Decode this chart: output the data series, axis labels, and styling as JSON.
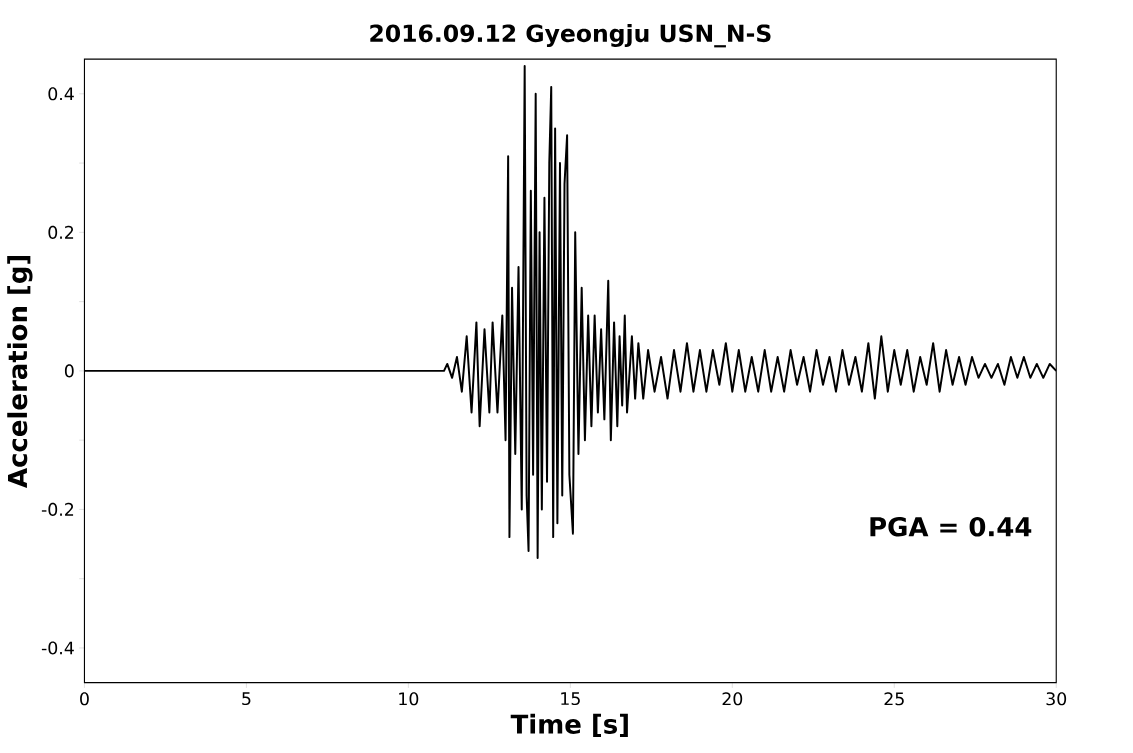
{
  "chart_data": {
    "type": "line",
    "title": "2016.09.12 Gyeongju USN_N-S",
    "xlabel": "Time [s]",
    "ylabel": "Acceleration [g]",
    "annotations": [
      "PGA = 0.44"
    ],
    "series": [
      {
        "color": "#000000",
        "x": [
          0,
          11.1,
          11.2,
          11.35,
          11.5,
          11.65,
          11.8,
          11.95,
          12.1,
          12.2,
          12.35,
          12.5,
          12.6,
          12.75,
          12.9,
          13.0,
          13.08,
          13.12,
          13.2,
          13.3,
          13.4,
          13.5,
          13.59,
          13.65,
          13.71,
          13.78,
          13.85,
          13.93,
          13.99,
          14.05,
          14.12,
          14.2,
          14.28,
          14.35,
          14.41,
          14.47,
          14.53,
          14.6,
          14.68,
          14.75,
          14.82,
          14.9,
          14.97,
          15.08,
          15.15,
          15.25,
          15.35,
          15.45,
          15.55,
          15.65,
          15.75,
          15.85,
          15.95,
          16.05,
          16.17,
          16.25,
          16.35,
          16.45,
          16.52,
          16.6,
          16.68,
          16.75,
          16.9,
          17.0,
          17.1,
          17.25,
          17.4,
          17.6,
          17.8,
          18.0,
          18.2,
          18.4,
          18.6,
          18.8,
          19.0,
          19.2,
          19.4,
          19.6,
          19.8,
          20.0,
          20.2,
          20.4,
          20.6,
          20.8,
          21.0,
          21.2,
          21.4,
          21.6,
          21.8,
          22.0,
          22.2,
          22.4,
          22.6,
          22.8,
          23.0,
          23.2,
          23.4,
          23.6,
          23.8,
          24.0,
          24.2,
          24.4,
          24.6,
          24.8,
          25.0,
          25.2,
          25.4,
          25.6,
          25.8,
          26.0,
          26.2,
          26.4,
          26.6,
          26.8,
          27.0,
          27.2,
          27.4,
          27.6,
          27.8,
          28.0,
          28.2,
          28.4,
          28.6,
          28.8,
          29.0,
          29.2,
          29.4,
          29.6,
          29.8,
          30.0
        ],
        "values": [
          0,
          0,
          0.01,
          -0.01,
          0.02,
          -0.03,
          0.05,
          -0.06,
          0.07,
          -0.08,
          0.06,
          -0.06,
          0.07,
          -0.06,
          0.08,
          -0.1,
          0.31,
          -0.24,
          0.12,
          -0.12,
          0.15,
          -0.2,
          0.44,
          -0.18,
          -0.26,
          0.26,
          -0.15,
          0.4,
          -0.27,
          0.2,
          -0.2,
          0.25,
          -0.16,
          0.3,
          0.41,
          -0.24,
          0.35,
          -0.22,
          0.3,
          -0.18,
          0.27,
          0.34,
          -0.15,
          -0.235,
          0.2,
          -0.12,
          0.12,
          -0.1,
          0.08,
          -0.08,
          0.08,
          -0.06,
          0.06,
          -0.07,
          0.13,
          -0.1,
          0.07,
          -0.08,
          0.05,
          -0.05,
          0.08,
          -0.06,
          0.05,
          -0.04,
          0.04,
          -0.04,
          0.03,
          -0.03,
          0.02,
          -0.04,
          0.03,
          -0.03,
          0.04,
          -0.03,
          0.03,
          -0.03,
          0.03,
          -0.02,
          0.04,
          -0.03,
          0.03,
          -0.03,
          0.02,
          -0.03,
          0.03,
          -0.03,
          0.02,
          -0.03,
          0.03,
          -0.02,
          0.02,
          -0.03,
          0.03,
          -0.02,
          0.02,
          -0.03,
          0.03,
          -0.02,
          0.02,
          -0.03,
          0.04,
          -0.04,
          0.05,
          -0.03,
          0.03,
          -0.02,
          0.03,
          -0.03,
          0.02,
          -0.02,
          0.04,
          -0.03,
          0.03,
          -0.02,
          0.02,
          -0.02,
          0.02,
          -0.01,
          0.01,
          -0.01,
          0.01,
          -0.02,
          0.02,
          -0.01,
          0.02,
          -0.01,
          0.01,
          -0.01,
          0.01,
          0.0
        ]
      }
    ],
    "xlim": [
      0,
      30
    ],
    "ylim": [
      -0.45,
      0.45
    ],
    "xticks": [
      0,
      5,
      10,
      15,
      20,
      25,
      30
    ],
    "yticks": [
      {
        "value": -0.4,
        "label": "-0.4"
      },
      {
        "value": -0.3,
        "label": null
      },
      {
        "value": -0.2,
        "label": "-0.2"
      },
      {
        "value": -0.1,
        "label": null
      },
      0,
      {
        "value": 0.1,
        "label": null
      },
      {
        "value": 0.2,
        "label": "0.2"
      },
      {
        "value": 0.3,
        "label": null
      },
      {
        "value": 0.4,
        "label": "0.4"
      }
    ],
    "grid": false
  }
}
